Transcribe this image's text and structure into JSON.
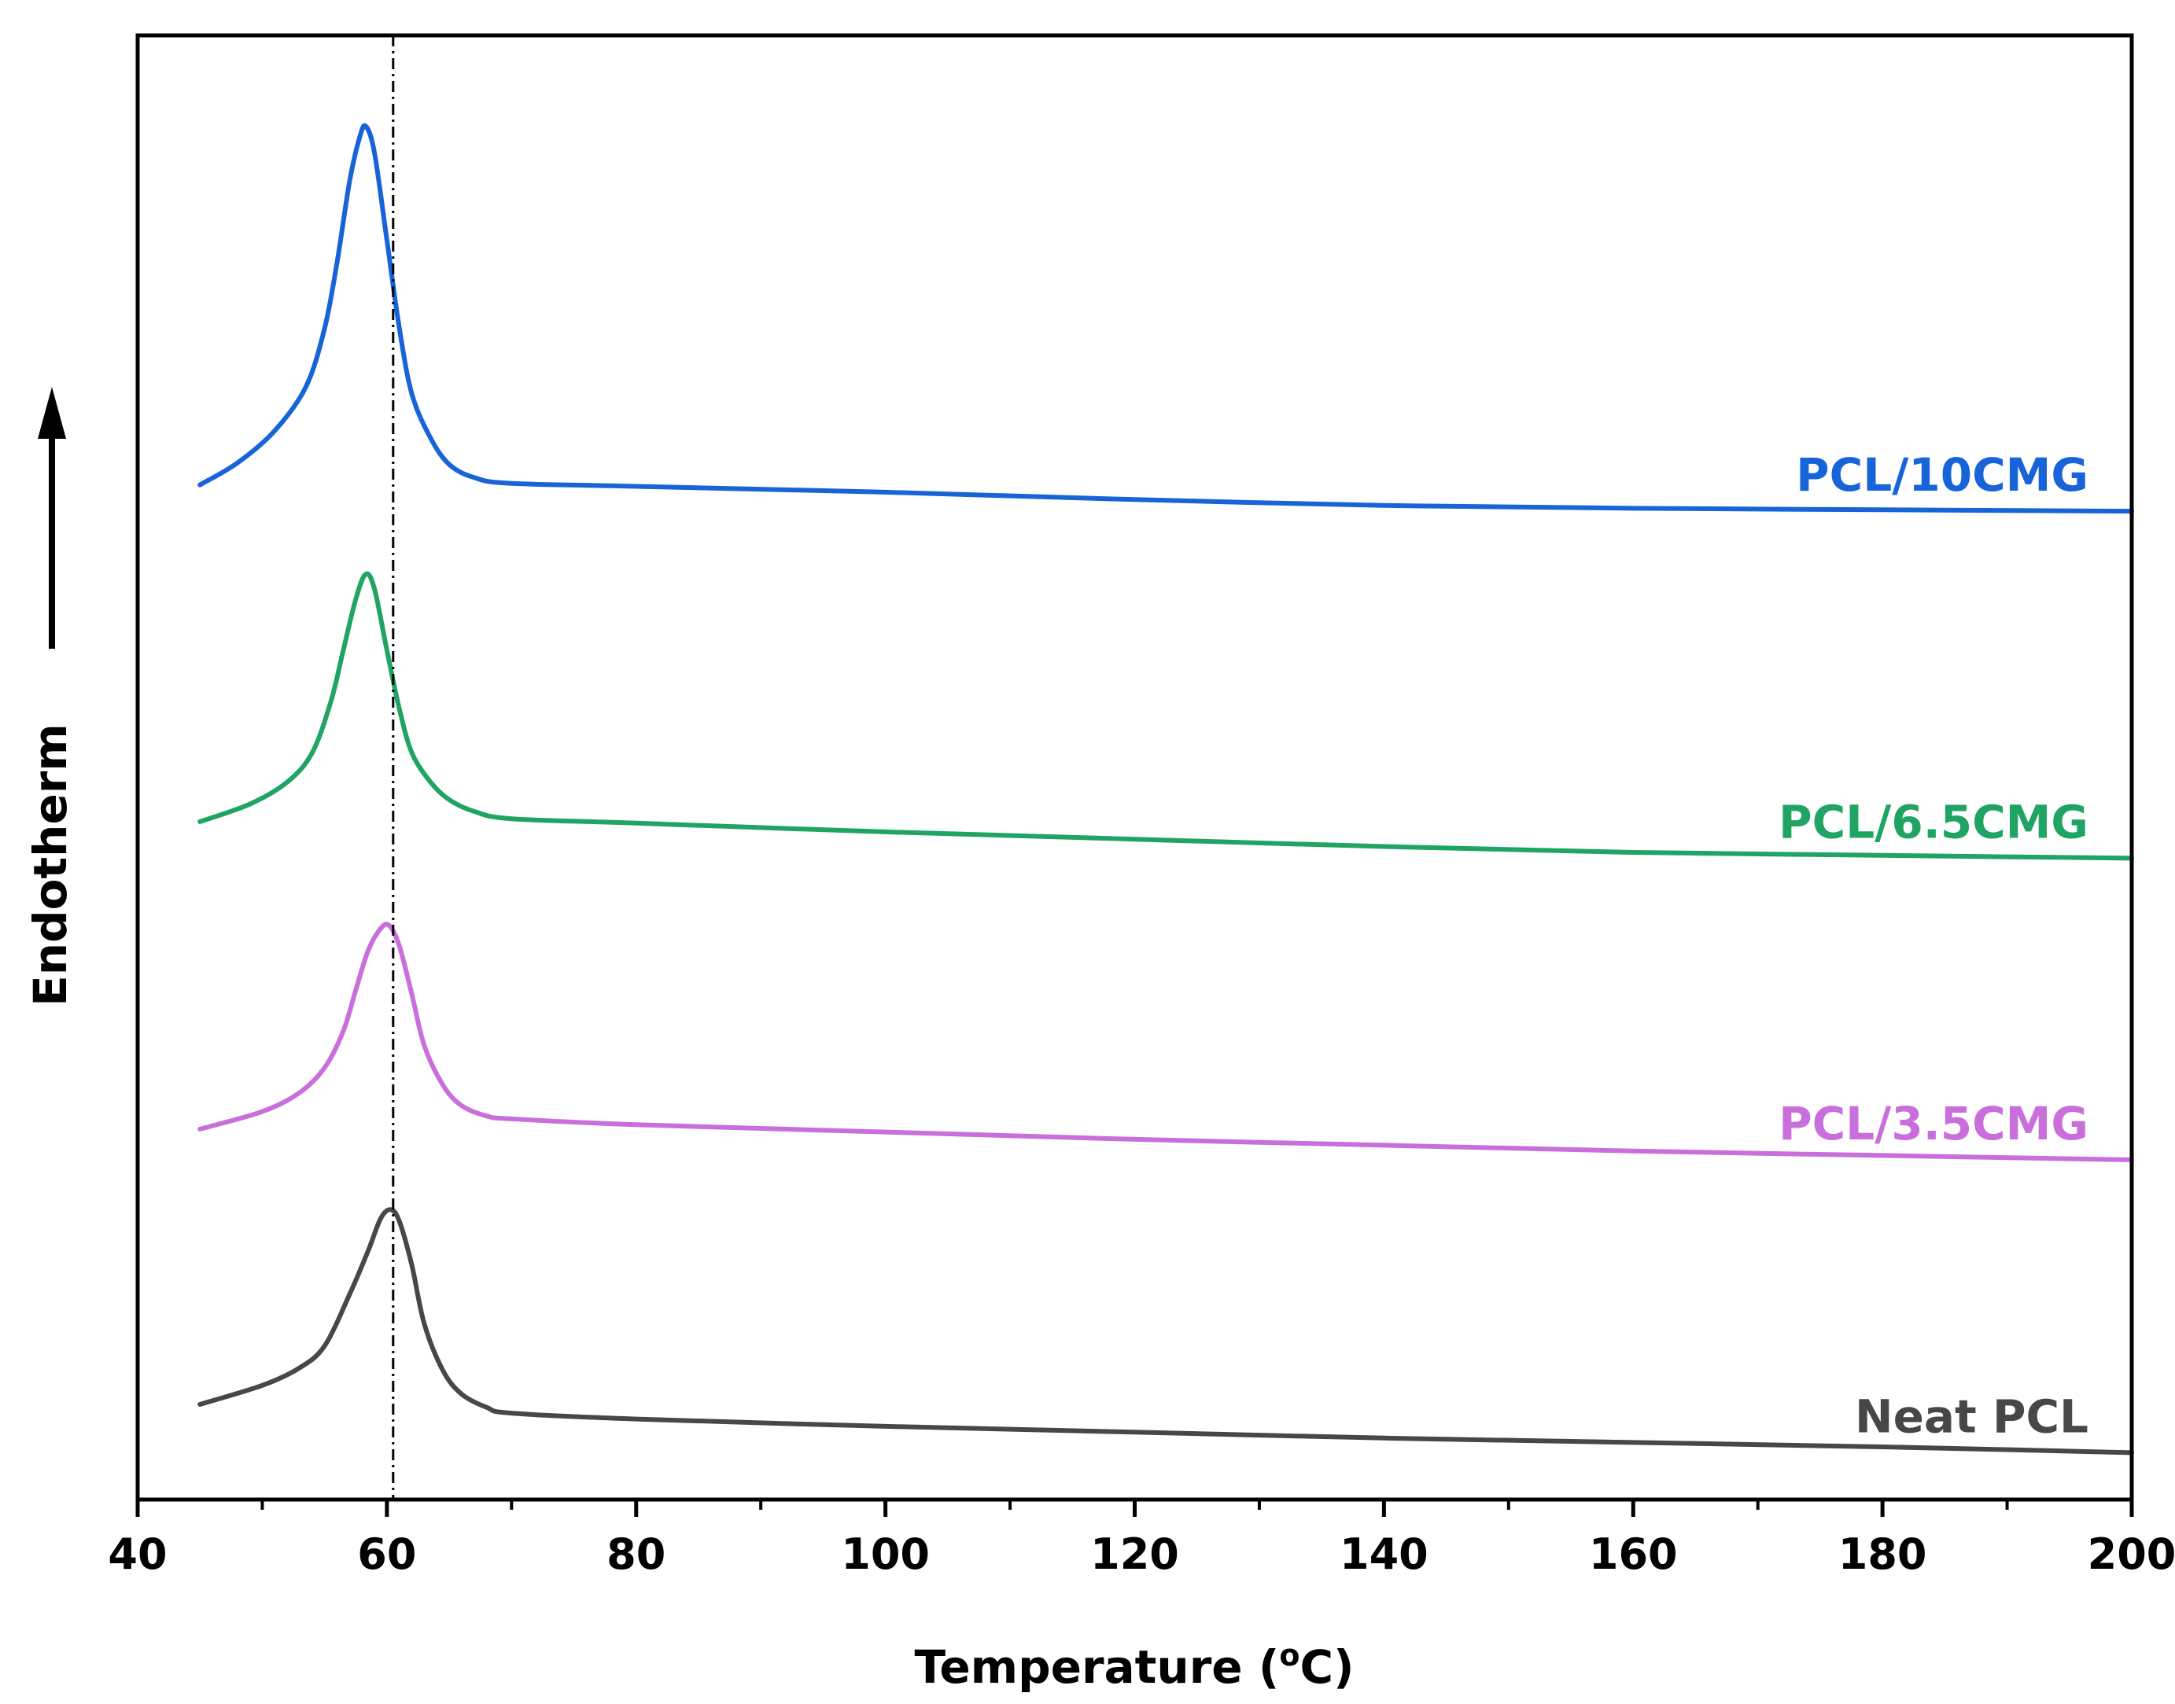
{
  "chart_data": {
    "type": "line",
    "title": "",
    "xlabel": "Temperature (",
    "xlabel_super": "o",
    "xlabel_suffix": "C)",
    "ylabel": "Endotherm",
    "xlim": [
      40,
      200
    ],
    "ylim": [
      0,
      1
    ],
    "x_ticks": [
      40,
      60,
      80,
      100,
      120,
      140,
      160,
      180,
      200
    ],
    "x_tick_labels": [
      "40",
      "60",
      "80",
      "100",
      "120",
      "140",
      "160",
      "180",
      "200"
    ],
    "x_minor_ticks": [
      50,
      70,
      90,
      110,
      130,
      150,
      170,
      190
    ],
    "reference_line_x": 60.5,
    "series": [
      {
        "name": "Neat PCL",
        "color": "#474747",
        "peak_x": 60.3,
        "points": [
          [
            45,
            0.065
          ],
          [
            50,
            0.078
          ],
          [
            53,
            0.09
          ],
          [
            55,
            0.105
          ],
          [
            57,
            0.14
          ],
          [
            58.5,
            0.17
          ],
          [
            59.5,
            0.192
          ],
          [
            60.3,
            0.198
          ],
          [
            61,
            0.19
          ],
          [
            62,
            0.16
          ],
          [
            63,
            0.12
          ],
          [
            64.5,
            0.088
          ],
          [
            66,
            0.072
          ],
          [
            68,
            0.063
          ],
          [
            70,
            0.059
          ],
          [
            80,
            0.055
          ],
          [
            100,
            0.05
          ],
          [
            120,
            0.046
          ],
          [
            140,
            0.042
          ],
          [
            160,
            0.039
          ],
          [
            180,
            0.036
          ],
          [
            200,
            0.032
          ]
        ]
      },
      {
        "name": "PCL/3.5CMG",
        "color": "#c96fdb",
        "peak_x": 59.9,
        "points": [
          [
            45,
            0.253
          ],
          [
            50,
            0.265
          ],
          [
            53,
            0.278
          ],
          [
            55,
            0.295
          ],
          [
            56.5,
            0.32
          ],
          [
            57.5,
            0.348
          ],
          [
            58.5,
            0.375
          ],
          [
            59.5,
            0.39
          ],
          [
            60.2,
            0.392
          ],
          [
            61,
            0.378
          ],
          [
            62,
            0.345
          ],
          [
            63,
            0.31
          ],
          [
            64.5,
            0.283
          ],
          [
            66,
            0.269
          ],
          [
            68,
            0.262
          ],
          [
            70,
            0.26
          ],
          [
            80,
            0.256
          ],
          [
            100,
            0.251
          ],
          [
            120,
            0.246
          ],
          [
            140,
            0.242
          ],
          [
            160,
            0.238
          ],
          [
            180,
            0.235
          ],
          [
            200,
            0.232
          ]
        ]
      },
      {
        "name": "PCL/6.5CMG",
        "color": "#1fa463",
        "peak_x": 58.2,
        "points": [
          [
            45,
            0.463
          ],
          [
            49,
            0.475
          ],
          [
            52,
            0.49
          ],
          [
            54,
            0.51
          ],
          [
            55.5,
            0.545
          ],
          [
            56.5,
            0.58
          ],
          [
            57.5,
            0.615
          ],
          [
            58.3,
            0.632
          ],
          [
            59,
            0.622
          ],
          [
            60,
            0.58
          ],
          [
            61,
            0.54
          ],
          [
            62,
            0.51
          ],
          [
            63.5,
            0.49
          ],
          [
            65,
            0.478
          ],
          [
            67,
            0.47
          ],
          [
            70,
            0.465
          ],
          [
            80,
            0.462
          ],
          [
            100,
            0.456
          ],
          [
            120,
            0.451
          ],
          [
            140,
            0.446
          ],
          [
            160,
            0.442
          ],
          [
            180,
            0.44
          ],
          [
            200,
            0.438
          ]
        ]
      },
      {
        "name": "PCL/10CMG",
        "color": "#1764d8",
        "peak_x": 58.1,
        "points": [
          [
            45,
            0.693
          ],
          [
            48,
            0.708
          ],
          [
            51,
            0.73
          ],
          [
            53.5,
            0.76
          ],
          [
            55,
            0.8
          ],
          [
            56,
            0.845
          ],
          [
            57,
            0.9
          ],
          [
            57.8,
            0.93
          ],
          [
            58.3,
            0.938
          ],
          [
            59,
            0.92
          ],
          [
            60,
            0.86
          ],
          [
            61,
            0.8
          ],
          [
            62,
            0.755
          ],
          [
            63.5,
            0.725
          ],
          [
            65,
            0.707
          ],
          [
            67,
            0.698
          ],
          [
            70,
            0.694
          ],
          [
            80,
            0.692
          ],
          [
            100,
            0.688
          ],
          [
            120,
            0.683
          ],
          [
            140,
            0.679
          ],
          [
            160,
            0.677
          ],
          [
            180,
            0.676
          ],
          [
            200,
            0.675
          ]
        ]
      }
    ],
    "label_anchor": "right-of-series-end"
  }
}
